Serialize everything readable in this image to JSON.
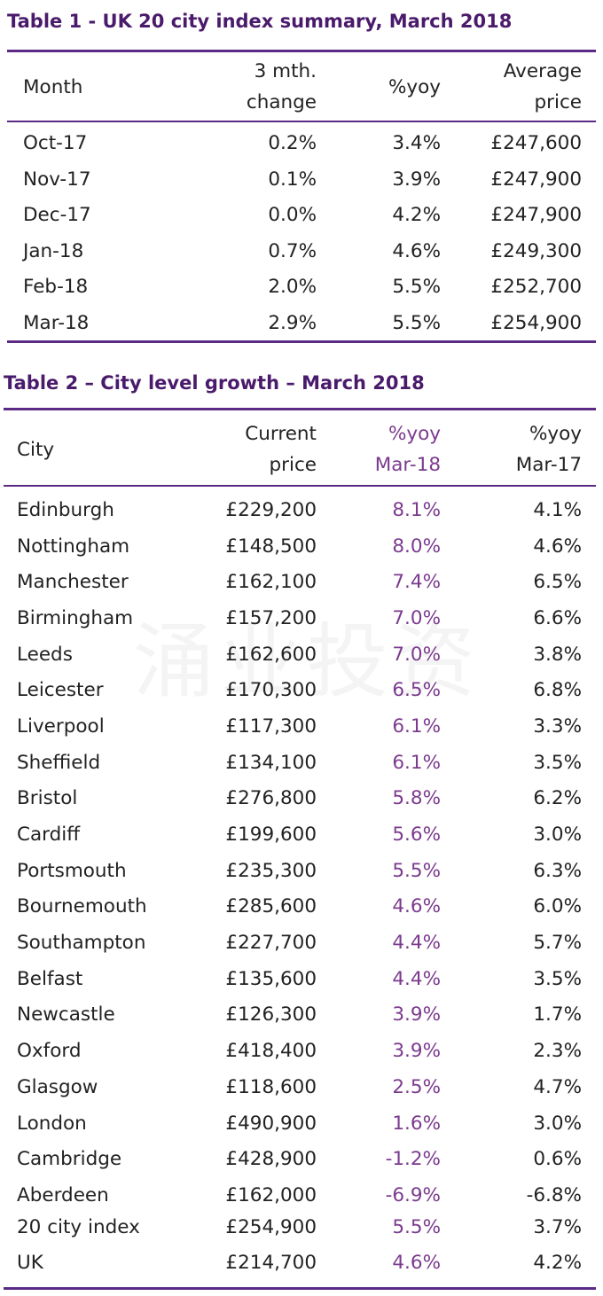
{
  "table1": {
    "title": "Table 1 - UK 20 city index summary, March 2018",
    "headers": {
      "month": "Month",
      "change_l1": "3 mth.",
      "change_l2": "change",
      "yoy": "%yoy",
      "avg_l1": "Average",
      "avg_l2": "price"
    },
    "rows": [
      {
        "month": "Oct-17",
        "change": "0.2%",
        "yoy": "3.4%",
        "price": "£247,600"
      },
      {
        "month": "Nov-17",
        "change": "0.1%",
        "yoy": "3.9%",
        "price": "£247,900"
      },
      {
        "month": "Dec-17",
        "change": "0.0%",
        "yoy": "4.2%",
        "price": "£247,900"
      },
      {
        "month": "Jan-18",
        "change": "0.7%",
        "yoy": "4.6%",
        "price": "£249,300"
      },
      {
        "month": "Feb-18",
        "change": "2.0%",
        "yoy": "5.5%",
        "price": "£252,700"
      },
      {
        "month": "Mar-18",
        "change": "2.9%",
        "yoy": "5.5%",
        "price": "£254,900"
      }
    ]
  },
  "table2": {
    "title": "Table 2 – City level growth – March 2018",
    "headers": {
      "city": "City",
      "price_l1": "Current",
      "price_l2": "price",
      "yoy18_l1": "%yoy",
      "yoy18_l2": "Mar-18",
      "yoy17_l1": "%yoy",
      "yoy17_l2": "Mar-17"
    },
    "rows": [
      {
        "city": "Edinburgh",
        "price": "£229,200",
        "yoy18": "8.1%",
        "yoy17": "4.1%"
      },
      {
        "city": "Nottingham",
        "price": "£148,500",
        "yoy18": "8.0%",
        "yoy17": "4.6%"
      },
      {
        "city": "Manchester",
        "price": "£162,100",
        "yoy18": "7.4%",
        "yoy17": "6.5%"
      },
      {
        "city": "Birmingham",
        "price": "£157,200",
        "yoy18": "7.0%",
        "yoy17": "6.6%"
      },
      {
        "city": "Leeds",
        "price": "£162,600",
        "yoy18": "7.0%",
        "yoy17": "3.8%"
      },
      {
        "city": "Leicester",
        "price": "£170,300",
        "yoy18": "6.5%",
        "yoy17": "6.8%"
      },
      {
        "city": "Liverpool",
        "price": "£117,300",
        "yoy18": "6.1%",
        "yoy17": "3.3%"
      },
      {
        "city": "Sheffield",
        "price": "£134,100",
        "yoy18": "6.1%",
        "yoy17": "3.5%"
      },
      {
        "city": "Bristol",
        "price": "£276,800",
        "yoy18": "5.8%",
        "yoy17": "6.2%"
      },
      {
        "city": "Cardiff",
        "price": "£199,600",
        "yoy18": "5.6%",
        "yoy17": "3.0%"
      },
      {
        "city": "Portsmouth",
        "price": "£235,300",
        "yoy18": "5.5%",
        "yoy17": "6.3%"
      },
      {
        "city": "Bournemouth",
        "price": "£285,600",
        "yoy18": "4.6%",
        "yoy17": "6.0%"
      },
      {
        "city": "Southampton",
        "price": "£227,700",
        "yoy18": "4.4%",
        "yoy17": "5.7%"
      },
      {
        "city": "Belfast",
        "price": "£135,600",
        "yoy18": "4.4%",
        "yoy17": "3.5%"
      },
      {
        "city": "Newcastle",
        "price": "£126,300",
        "yoy18": "3.9%",
        "yoy17": "1.7%"
      },
      {
        "city": "Oxford",
        "price": "£418,400",
        "yoy18": "3.9%",
        "yoy17": "2.3%"
      },
      {
        "city": "Glasgow",
        "price": "£118,600",
        "yoy18": "2.5%",
        "yoy17": "4.7%"
      },
      {
        "city": "London",
        "price": "£490,900",
        "yoy18": "1.6%",
        "yoy17": "3.0%"
      },
      {
        "city": "Cambridge",
        "price": "£428,900",
        "yoy18": "-1.2%",
        "yoy17": "0.6%"
      },
      {
        "city": "Aberdeen",
        "price": "£162,000",
        "yoy18": "-6.9%",
        "yoy17": "-6.8%"
      },
      {
        "city": "20 city index",
        "price": "£254,900",
        "yoy18": "5.5%",
        "yoy17": "3.7%"
      },
      {
        "city": "UK",
        "price": "£214,700",
        "yoy18": "4.6%",
        "yoy17": "4.2%"
      }
    ]
  },
  "watermark": "涌业投资",
  "colors": {
    "accent": "#4a1a6b",
    "rule": "#5b2a86",
    "highlight": "#7b3a8e"
  }
}
